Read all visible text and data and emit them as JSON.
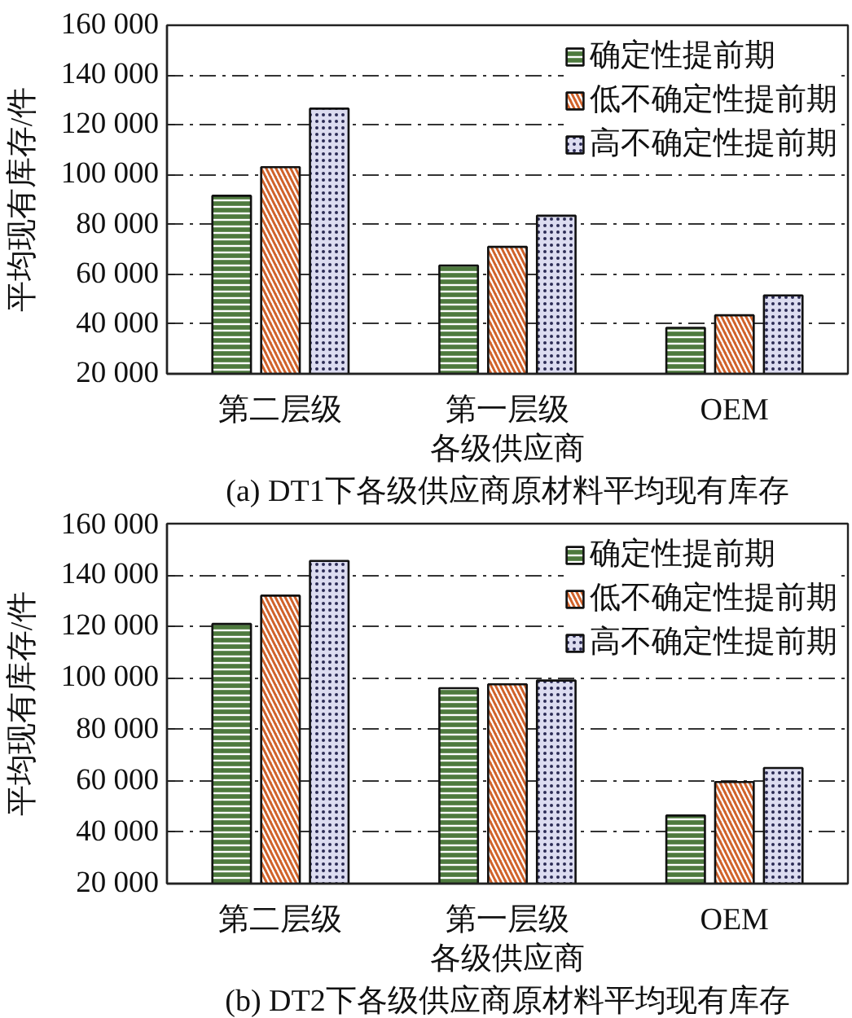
{
  "chart_data": [
    {
      "type": "bar",
      "title": "(a) DT1下各级供应商原材料平均现有库存",
      "xlabel": "各级供应商",
      "ylabel": "平均现有库存/件",
      "categories": [
        "第二层级",
        "第一层级",
        "OEM"
      ],
      "series": [
        {
          "name": "确定性提前期",
          "color": "#4e7a3e",
          "values": [
            91500,
            63500,
            38500
          ]
        },
        {
          "name": "低不确定性提前期",
          "color": "#d0622a",
          "values": [
            103000,
            71000,
            43500
          ]
        },
        {
          "name": "高不确定性提前期",
          "color": "#dcdcf0",
          "values": [
            126500,
            83500,
            51500
          ]
        }
      ],
      "ylim": [
        20000,
        160000
      ],
      "yticks": [
        {
          "value": 20000,
          "label": "20 000"
        },
        {
          "value": 40000,
          "label": "40 000"
        },
        {
          "value": 60000,
          "label": "60 000"
        },
        {
          "value": 80000,
          "label": "80 000"
        },
        {
          "value": 100000,
          "label": "100 000"
        },
        {
          "value": 120000,
          "label": "120 000"
        },
        {
          "value": 140000,
          "label": "140 000"
        },
        {
          "value": 160000,
          "label": "160 000"
        }
      ],
      "grid": "y",
      "legend": "top right"
    },
    {
      "type": "bar",
      "title": "(b) DT2下各级供应商原材料平均现有库存",
      "xlabel": "各级供应商",
      "ylabel": "平均现有库存/件",
      "categories": [
        "第二层级",
        "第一层级",
        "OEM"
      ],
      "series": [
        {
          "name": "确定性提前期",
          "color": "#4e7a3e",
          "values": [
            121000,
            96000,
            46500
          ]
        },
        {
          "name": "低不确定性提前期",
          "color": "#d0622a",
          "values": [
            132000,
            97500,
            59500
          ]
        },
        {
          "name": "高不确定性提前期",
          "color": "#dcdcf0",
          "values": [
            145500,
            99000,
            65000
          ]
        }
      ],
      "ylim": [
        20000,
        160000
      ],
      "yticks": [
        {
          "value": 20000,
          "label": "20 000"
        },
        {
          "value": 40000,
          "label": "40 000"
        },
        {
          "value": 60000,
          "label": "60 000"
        },
        {
          "value": 80000,
          "label": "80 000"
        },
        {
          "value": 100000,
          "label": "100 000"
        },
        {
          "value": 120000,
          "label": "120 000"
        },
        {
          "value": 140000,
          "label": "140 000"
        },
        {
          "value": 160000,
          "label": "160 000"
        }
      ],
      "grid": "y",
      "legend": "top right"
    }
  ]
}
